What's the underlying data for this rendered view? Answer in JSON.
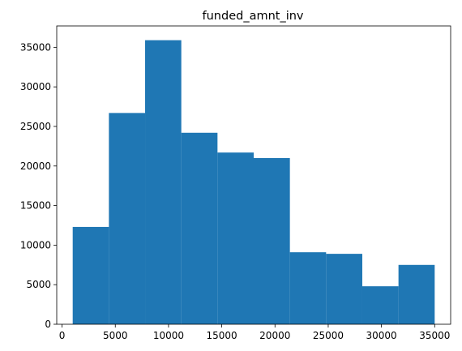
{
  "chart_data": {
    "type": "histogram",
    "title": "funded_amnt_inv",
    "xlabel": "",
    "ylabel": "",
    "bin_edges": [
      1000,
      4400,
      7800,
      11200,
      14600,
      18000,
      21400,
      24800,
      28200,
      31600,
      35000
    ],
    "values": [
      12300,
      26700,
      35900,
      24200,
      21700,
      21000,
      9100,
      8900,
      4800,
      7500
    ],
    "bar_color": "#1f77b4",
    "xlim": [
      -500,
      36500
    ],
    "ylim": [
      0,
      37700
    ],
    "xticks": [
      0,
      5000,
      10000,
      15000,
      20000,
      25000,
      30000,
      35000
    ],
    "yticks": [
      0,
      5000,
      10000,
      15000,
      20000,
      25000,
      30000,
      35000
    ],
    "grid": false
  }
}
